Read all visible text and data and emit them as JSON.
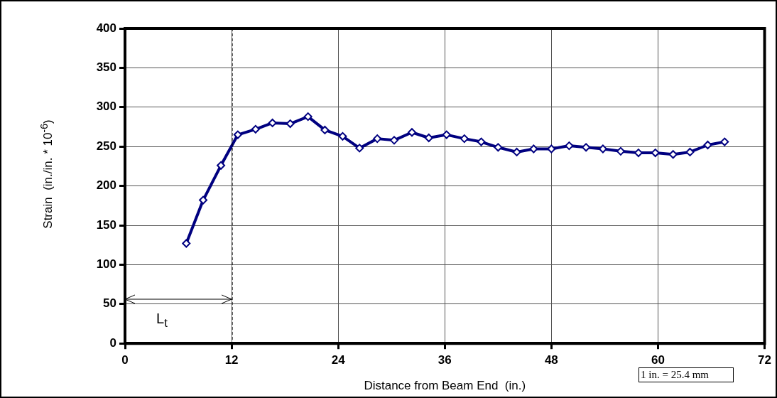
{
  "chart_data": {
    "type": "line",
    "xlabel": "Distance from Beam End  (in.)",
    "ylabel": "Strain  (in./in. * 10$^{-6}$)",
    "x": [
      6.9,
      8.8,
      10.8,
      12.7,
      14.7,
      16.6,
      18.6,
      20.6,
      22.5,
      24.5,
      26.4,
      28.4,
      30.3,
      32.3,
      34.2,
      36.2,
      38.2,
      40.1,
      42.0,
      44.1,
      46.0,
      48.0,
      50.0,
      51.9,
      53.8,
      55.8,
      57.8,
      59.7,
      61.7,
      63.6,
      65.6,
      67.5
    ],
    "series": [
      {
        "color": "#000080",
        "values": [
          127,
          182,
          226,
          265,
          272,
          280,
          279,
          288,
          271,
          263,
          248,
          260,
          258,
          268,
          261,
          265,
          260,
          256,
          249,
          243,
          247,
          247,
          251,
          249,
          247,
          244,
          242,
          242,
          240,
          243,
          252,
          256
        ]
      }
    ],
    "xlim": [
      0,
      72
    ],
    "xticks": [
      0,
      12,
      24,
      36,
      48,
      60,
      72
    ],
    "ylim": [
      0,
      400
    ],
    "yticks": [
      0,
      50,
      100,
      150,
      200,
      250,
      300,
      350,
      400
    ],
    "grid": true,
    "marker": "diamond",
    "line_style": "solid",
    "legend": false,
    "ref_lines": [
      {
        "axis": "x",
        "value": 12,
        "line_style": "dashed",
        "color": "#000000"
      }
    ],
    "annotations": [
      "L$_{t}$",
      "1 in. = 25.4 mm"
    ]
  }
}
